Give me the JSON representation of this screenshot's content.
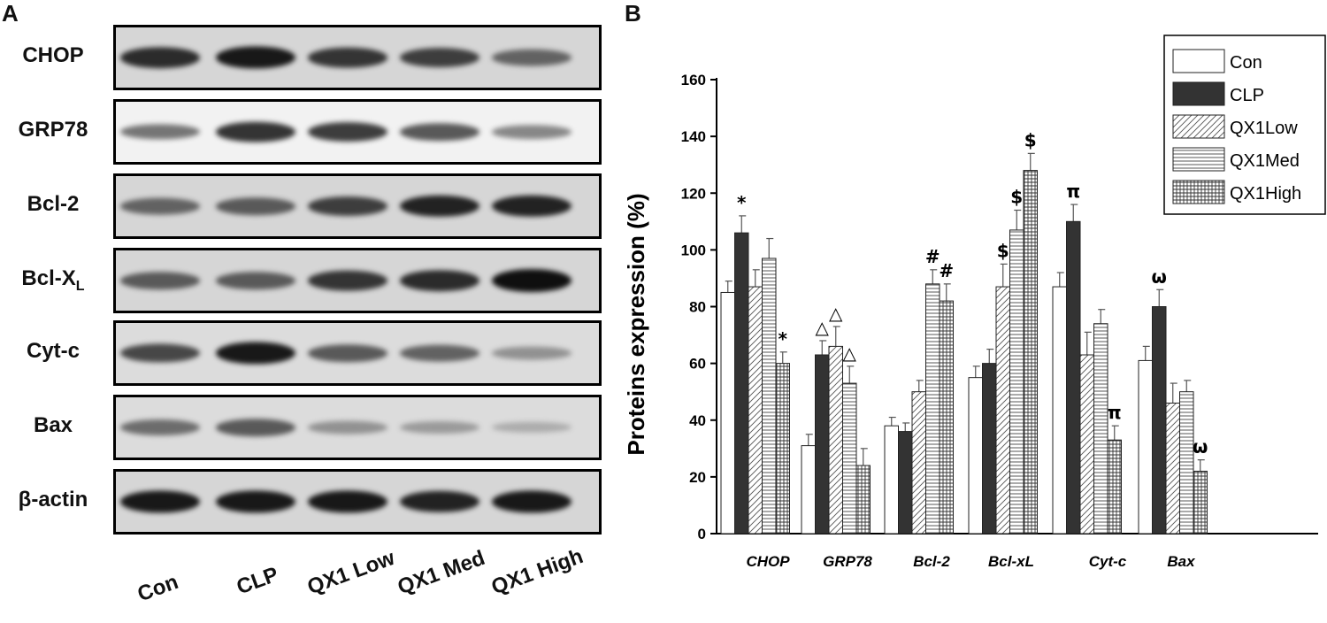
{
  "panels": {
    "a": "A",
    "b": "B"
  },
  "blot": {
    "rows": [
      {
        "label": "CHOP",
        "intensities": [
          0.85,
          0.95,
          0.8,
          0.75,
          0.55
        ]
      },
      {
        "label": "GRP78",
        "intensities": [
          0.45,
          0.8,
          0.75,
          0.6,
          0.35
        ]
      },
      {
        "label": "Bcl-2",
        "intensities": [
          0.55,
          0.6,
          0.75,
          0.9,
          0.9
        ]
      },
      {
        "label": "Bcl-X",
        "subscript": "L",
        "intensities": [
          0.6,
          0.6,
          0.8,
          0.85,
          1.0
        ]
      },
      {
        "label": "Cyt-c",
        "intensities": [
          0.7,
          0.95,
          0.6,
          0.55,
          0.3
        ]
      },
      {
        "label": "Bax",
        "intensities": [
          0.5,
          0.6,
          0.3,
          0.25,
          0.15
        ]
      },
      {
        "label": "β-actin",
        "intensities": [
          0.95,
          0.95,
          0.95,
          0.9,
          0.95
        ]
      }
    ],
    "lanes": [
      "Con",
      "CLP",
      "QX1 Low",
      "QX1 Med",
      "QX1 High"
    ]
  },
  "chart_data": {
    "type": "bar",
    "ylabel": "Proteins expression (%)",
    "xlabel": "",
    "ylim": [
      0,
      160
    ],
    "yticks": [
      0,
      20,
      40,
      60,
      80,
      100,
      120,
      140,
      160
    ],
    "categories": [
      "CHOP",
      "GRP78",
      "Bcl-2",
      "Bcl-xL",
      "Cyt-c",
      "Bax"
    ],
    "series": [
      {
        "name": "Con",
        "pattern": "white",
        "values": [
          85,
          31,
          38,
          55,
          87,
          61
        ],
        "errors": [
          4,
          4,
          3,
          4,
          5,
          5
        ]
      },
      {
        "name": "CLP",
        "pattern": "black",
        "values": [
          106,
          63,
          36,
          60,
          110,
          80
        ],
        "errors": [
          6,
          5,
          3,
          5,
          6,
          6
        ]
      },
      {
        "name": "QX1Low",
        "pattern": "diagonal",
        "values": [
          87,
          66,
          50,
          87,
          63,
          46
        ],
        "errors": [
          6,
          7,
          4,
          8,
          8,
          7
        ]
      },
      {
        "name": "QX1Med",
        "pattern": "horizontal",
        "values": [
          97,
          53,
          88,
          107,
          74,
          50
        ],
        "errors": [
          7,
          6,
          5,
          7,
          5,
          4
        ]
      },
      {
        "name": "QX1High",
        "pattern": "grid",
        "values": [
          60,
          24,
          82,
          128,
          33,
          22
        ],
        "errors": [
          4,
          6,
          6,
          6,
          5,
          4
        ]
      }
    ],
    "annotations": [
      {
        "category": 0,
        "series": 1,
        "text": "*"
      },
      {
        "category": 0,
        "series": 4,
        "text": "*"
      },
      {
        "category": 1,
        "series": 1,
        "text": "△"
      },
      {
        "category": 1,
        "series": 2,
        "text": "△"
      },
      {
        "category": 1,
        "series": 3,
        "text": "△"
      },
      {
        "category": 2,
        "series": 3,
        "text": "#"
      },
      {
        "category": 2,
        "series": 4,
        "text": "#"
      },
      {
        "category": 3,
        "series": 2,
        "text": "$"
      },
      {
        "category": 3,
        "series": 3,
        "text": "$"
      },
      {
        "category": 3,
        "series": 4,
        "text": "$"
      },
      {
        "category": 4,
        "series": 1,
        "text": "π"
      },
      {
        "category": 4,
        "series": 4,
        "text": "π"
      },
      {
        "category": 5,
        "series": 1,
        "text": "ω"
      },
      {
        "category": 5,
        "series": 4,
        "text": "ω"
      }
    ],
    "legend_position": "top-right",
    "grid": false
  }
}
